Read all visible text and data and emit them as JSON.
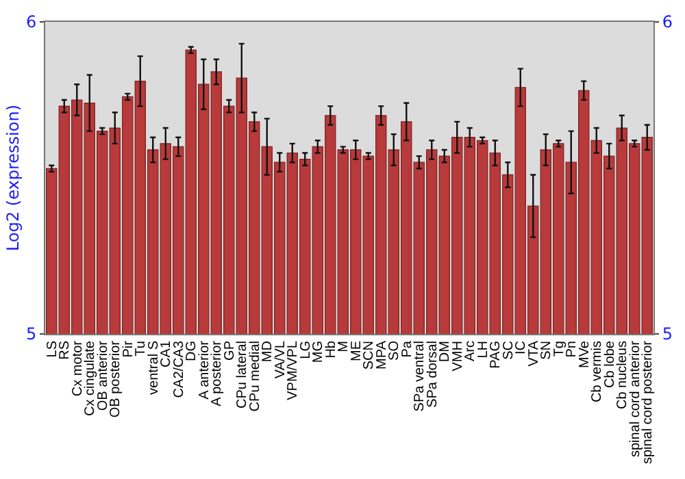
{
  "chart_data": {
    "type": "bar",
    "ylabel": "Log2 (expression)",
    "categories": [
      "LS",
      "RS",
      "Cx motor",
      "Cx cingulate",
      "OB anterior",
      "OB posterior",
      "Pir",
      "Tu",
      "ventral S",
      "CA1",
      "CA2/CA3",
      "DG",
      "A anterior",
      "A posterior",
      "GP",
      "CPu lateral",
      "CPu medial",
      "MD",
      "VA/VL",
      "VPM/VPL",
      "LG",
      "MG",
      "Hb",
      "M",
      "ME",
      "SCN",
      "MPA",
      "SO",
      "Pa",
      "SPa ventral",
      "SPa dorsal",
      "DM",
      "VMH",
      "Arc",
      "LH",
      "PAG",
      "SC",
      "IC",
      "VTA",
      "SN",
      "Tg",
      "Pn",
      "MVe",
      "Cb vermis",
      "Cb lobe",
      "Cb nucleus",
      "spinal cord anterior",
      "spinal cord posterior"
    ],
    "values": [
      5.53,
      5.73,
      5.75,
      5.74,
      5.65,
      5.66,
      5.76,
      5.81,
      5.59,
      5.61,
      5.6,
      5.91,
      5.8,
      5.84,
      5.73,
      5.82,
      5.68,
      5.6,
      5.55,
      5.58,
      5.56,
      5.6,
      5.7,
      5.59,
      5.59,
      5.57,
      5.7,
      5.59,
      5.68,
      5.55,
      5.59,
      5.57,
      5.63,
      5.63,
      5.62,
      5.58,
      5.51,
      5.79,
      5.41,
      5.59,
      5.61,
      5.55,
      5.78,
      5.62,
      5.57,
      5.66,
      5.61,
      5.63
    ],
    "errors": [
      0.01,
      0.02,
      0.05,
      0.09,
      0.01,
      0.05,
      0.01,
      0.08,
      0.04,
      0.05,
      0.03,
      0.01,
      0.08,
      0.04,
      0.02,
      0.11,
      0.03,
      0.09,
      0.03,
      0.03,
      0.02,
      0.02,
      0.03,
      0.01,
      0.03,
      0.01,
      0.03,
      0.05,
      0.06,
      0.02,
      0.03,
      0.02,
      0.05,
      0.03,
      0.01,
      0.04,
      0.04,
      0.06,
      0.1,
      0.05,
      0.01,
      0.1,
      0.03,
      0.04,
      0.04,
      0.04,
      0.01,
      0.04
    ],
    "color": "#b83a3a",
    "ylim": [
      5,
      6
    ],
    "yticks": [
      5,
      6
    ],
    "y2lim": [
      5,
      6
    ],
    "y2ticks": [
      5,
      6
    ],
    "grid": false
  }
}
